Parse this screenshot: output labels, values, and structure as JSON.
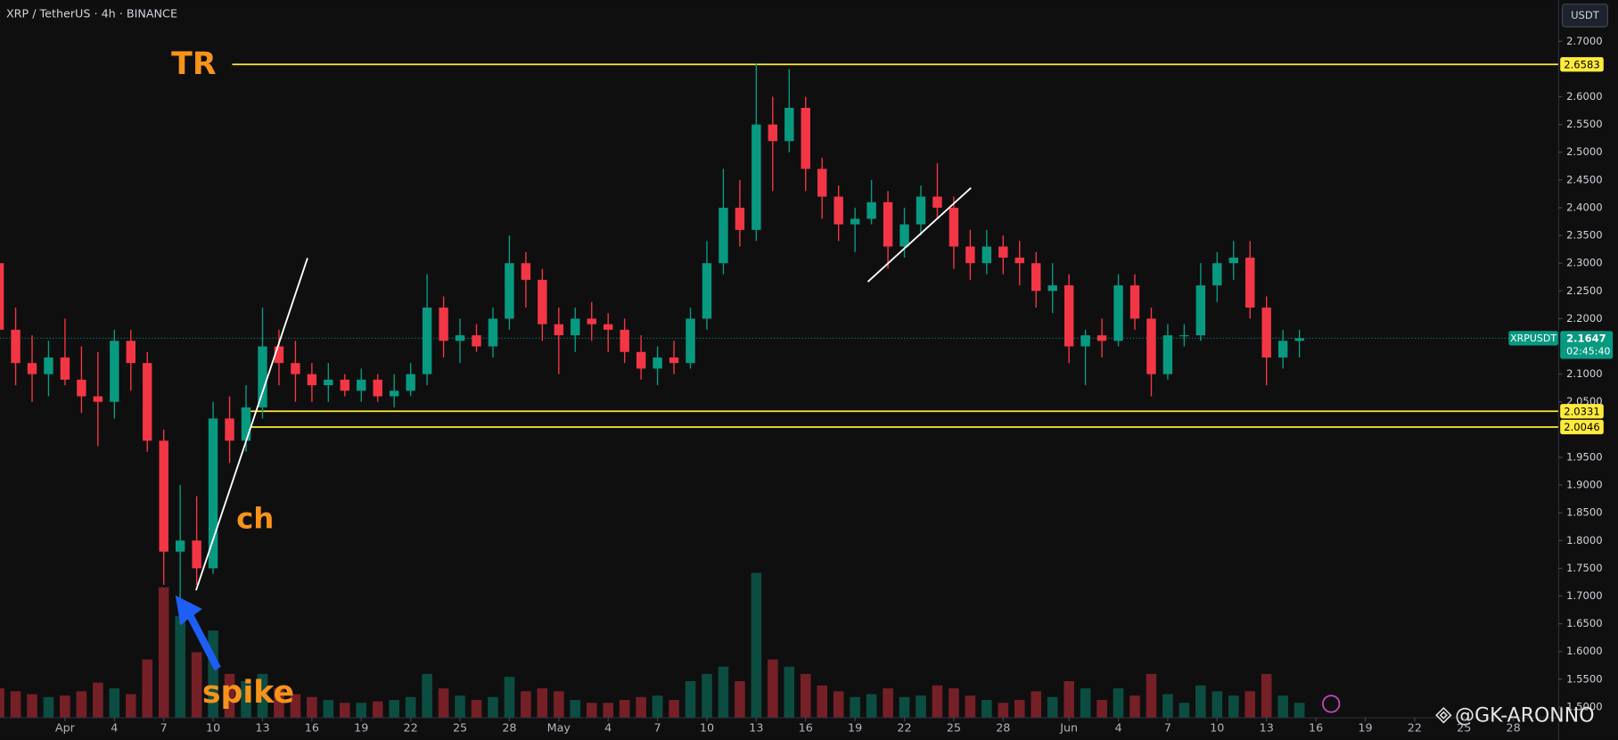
{
  "chart_data": {
    "type": "candlestick",
    "title": "XRP / TetherUS · 4h · BINANCE",
    "currency": "USDT",
    "symbol": "XRPUSDT",
    "countdown": "02:45:40",
    "annotations": {
      "tr": "TR",
      "ch": "ch",
      "spike": "spike"
    },
    "watermark": "@GK-ARONNO",
    "up_color": "#089981",
    "down_color": "#f23645",
    "level_color": "#ffeb3b",
    "grid": false,
    "x": [
      -4,
      -3,
      -2,
      -1,
      0,
      1,
      2,
      3,
      4,
      5,
      6,
      7,
      8,
      9,
      10,
      11,
      12,
      13,
      14,
      15,
      16,
      17,
      18,
      19,
      20,
      21,
      22,
      23,
      24,
      25,
      26,
      27,
      28,
      29,
      30,
      31,
      32,
      33,
      34,
      35,
      36,
      37,
      38,
      39,
      40,
      41,
      42,
      43,
      44,
      45,
      46,
      47,
      48,
      49,
      50,
      51,
      52,
      53,
      54,
      55,
      56,
      57,
      58,
      59,
      60,
      61,
      62,
      63,
      64,
      65,
      66,
      67,
      68,
      69,
      70,
      71,
      72,
      73,
      74,
      75
    ],
    "open": [
      2.3,
      2.18,
      2.12,
      2.1,
      2.13,
      2.09,
      2.06,
      2.05,
      2.16,
      2.12,
      1.98,
      1.78,
      1.8,
      1.75,
      2.02,
      1.98,
      2.04,
      2.15,
      2.12,
      2.1,
      2.08,
      2.09,
      2.07,
      2.09,
      2.06,
      2.07,
      2.1,
      2.22,
      2.16,
      2.17,
      2.15,
      2.2,
      2.3,
      2.27,
      2.19,
      2.17,
      2.2,
      2.19,
      2.18,
      2.14,
      2.11,
      2.13,
      2.12,
      2.2,
      2.3,
      2.4,
      2.36,
      2.55,
      2.52,
      2.58,
      2.47,
      2.42,
      2.37,
      2.38,
      2.41,
      2.33,
      2.37,
      2.42,
      2.4,
      2.33,
      2.3,
      2.33,
      2.31,
      2.3,
      2.25,
      2.26,
      2.15,
      2.17,
      2.16,
      2.26,
      2.2,
      2.1,
      2.17,
      2.17,
      2.26,
      2.3,
      2.31,
      2.22,
      2.13,
      2.16
    ],
    "high": [
      2.33,
      2.22,
      2.17,
      2.16,
      2.2,
      2.15,
      2.14,
      2.18,
      2.18,
      2.14,
      2.0,
      1.9,
      1.88,
      2.05,
      2.06,
      2.08,
      2.22,
      2.18,
      2.16,
      2.12,
      2.12,
      2.1,
      2.11,
      2.1,
      2.1,
      2.12,
      2.28,
      2.24,
      2.2,
      2.19,
      2.22,
      2.35,
      2.32,
      2.29,
      2.22,
      2.22,
      2.23,
      2.21,
      2.2,
      2.17,
      2.15,
      2.16,
      2.22,
      2.34,
      2.47,
      2.45,
      2.66,
      2.6,
      2.65,
      2.6,
      2.49,
      2.44,
      2.4,
      2.45,
      2.43,
      2.4,
      2.44,
      2.48,
      2.42,
      2.36,
      2.36,
      2.35,
      2.34,
      2.32,
      2.3,
      2.28,
      2.18,
      2.2,
      2.28,
      2.28,
      2.22,
      2.19,
      2.19,
      2.3,
      2.32,
      2.34,
      2.34,
      2.24,
      2.18,
      2.18
    ],
    "low": [
      2.15,
      2.08,
      2.05,
      2.06,
      2.08,
      2.03,
      1.97,
      2.02,
      2.07,
      1.96,
      1.72,
      1.65,
      1.72,
      1.74,
      1.94,
      1.96,
      2.02,
      2.08,
      2.05,
      2.05,
      2.05,
      2.06,
      2.05,
      2.05,
      2.04,
      2.06,
      2.08,
      2.13,
      2.12,
      2.14,
      2.13,
      2.18,
      2.22,
      2.16,
      2.1,
      2.14,
      2.16,
      2.14,
      2.12,
      2.09,
      2.08,
      2.1,
      2.11,
      2.18,
      2.28,
      2.33,
      2.34,
      2.43,
      2.5,
      2.43,
      2.38,
      2.34,
      2.32,
      2.37,
      2.29,
      2.31,
      2.35,
      2.38,
      2.29,
      2.27,
      2.28,
      2.28,
      2.26,
      2.22,
      2.21,
      2.12,
      2.08,
      2.13,
      2.15,
      2.18,
      2.06,
      2.09,
      2.15,
      2.16,
      2.23,
      2.27,
      2.2,
      2.08,
      2.11,
      2.13
    ],
    "close": [
      2.18,
      2.12,
      2.1,
      2.13,
      2.09,
      2.06,
      2.05,
      2.16,
      2.12,
      1.98,
      1.78,
      1.8,
      1.75,
      2.02,
      1.98,
      2.04,
      2.15,
      2.12,
      2.1,
      2.08,
      2.09,
      2.07,
      2.09,
      2.06,
      2.07,
      2.1,
      2.22,
      2.16,
      2.17,
      2.15,
      2.2,
      2.3,
      2.27,
      2.19,
      2.17,
      2.2,
      2.19,
      2.18,
      2.14,
      2.11,
      2.13,
      2.12,
      2.2,
      2.3,
      2.4,
      2.36,
      2.55,
      2.52,
      2.58,
      2.47,
      2.42,
      2.37,
      2.38,
      2.41,
      2.33,
      2.37,
      2.42,
      2.4,
      2.33,
      2.3,
      2.33,
      2.31,
      2.3,
      2.25,
      2.26,
      2.15,
      2.17,
      2.16,
      2.26,
      2.2,
      2.1,
      2.17,
      2.17,
      2.26,
      2.3,
      2.31,
      2.22,
      2.13,
      2.16,
      2.1647
    ],
    "volume": [
      20,
      18,
      16,
      14,
      15,
      18,
      24,
      20,
      16,
      40,
      90,
      70,
      45,
      60,
      30,
      25,
      30,
      20,
      16,
      14,
      12,
      10,
      10,
      11,
      12,
      14,
      30,
      20,
      15,
      12,
      14,
      28,
      18,
      20,
      18,
      12,
      10,
      10,
      12,
      14,
      15,
      12,
      25,
      30,
      35,
      25,
      100,
      40,
      35,
      30,
      22,
      18,
      14,
      16,
      20,
      14,
      15,
      22,
      20,
      15,
      12,
      10,
      12,
      18,
      14,
      25,
      20,
      12,
      20,
      15,
      30,
      16,
      10,
      22,
      18,
      15,
      18,
      30,
      15,
      10
    ],
    "levels": [
      2.6583,
      2.0331,
      2.0046
    ],
    "last_price": 2.1647,
    "xlim": [
      -3.95,
      90.72
    ],
    "ylim": [
      1.4814,
      2.7744
    ],
    "xticks": [
      {
        "value": 0,
        "label": "Apr"
      },
      {
        "value": 3,
        "label": "4"
      },
      {
        "value": 6,
        "label": "7"
      },
      {
        "value": 9,
        "label": "10"
      },
      {
        "value": 12,
        "label": "13"
      },
      {
        "value": 15,
        "label": "16"
      },
      {
        "value": 18,
        "label": "19"
      },
      {
        "value": 21,
        "label": "22"
      },
      {
        "value": 24,
        "label": "25"
      },
      {
        "value": 27,
        "label": "28"
      },
      {
        "value": 30,
        "label": "May"
      },
      {
        "value": 33,
        "label": "4"
      },
      {
        "value": 36,
        "label": "7"
      },
      {
        "value": 39,
        "label": "10"
      },
      {
        "value": 42,
        "label": "13"
      },
      {
        "value": 45,
        "label": "16"
      },
      {
        "value": 48,
        "label": "19"
      },
      {
        "value": 51,
        "label": "22"
      },
      {
        "value": 54,
        "label": "25"
      },
      {
        "value": 57,
        "label": "28"
      },
      {
        "value": 61,
        "label": "Jun"
      },
      {
        "value": 64,
        "label": "4"
      },
      {
        "value": 67,
        "label": "7"
      },
      {
        "value": 70,
        "label": "10"
      },
      {
        "value": 73,
        "label": "13"
      },
      {
        "value": 76,
        "label": "16"
      },
      {
        "value": 79,
        "label": "19"
      },
      {
        "value": 82,
        "label": "22"
      },
      {
        "value": 85,
        "label": "25"
      },
      {
        "value": 88,
        "label": "28"
      }
    ],
    "yticks": [
      {
        "value": 2.7,
        "label": "2.7000"
      },
      {
        "value": 2.6,
        "label": "2.6000"
      },
      {
        "value": 2.55,
        "label": "2.5500"
      },
      {
        "value": 2.5,
        "label": "2.5000"
      },
      {
        "value": 2.45,
        "label": "2.4500"
      },
      {
        "value": 2.4,
        "label": "2.4000"
      },
      {
        "value": 2.35,
        "label": "2.3500"
      },
      {
        "value": 2.3,
        "label": "2.3000"
      },
      {
        "value": 2.25,
        "label": "2.2500"
      },
      {
        "value": 2.2,
        "label": "2.2000"
      },
      {
        "value": 2.1,
        "label": "2.1000"
      },
      {
        "value": 2.05,
        "label": "2.0500"
      },
      {
        "value": 1.95,
        "label": "1.9500"
      },
      {
        "value": 1.9,
        "label": "1.9000"
      },
      {
        "value": 1.85,
        "label": "1.8500"
      },
      {
        "value": 1.8,
        "label": "1.8000"
      },
      {
        "value": 1.75,
        "label": "1.7500"
      },
      {
        "value": 1.7,
        "label": "1.7000"
      },
      {
        "value": 1.65,
        "label": "1.6500"
      },
      {
        "value": 1.6,
        "label": "1.6000"
      },
      {
        "value": 1.55,
        "label": "1.5500"
      },
      {
        "value": 1.5,
        "label": "1.5000"
      }
    ]
  }
}
